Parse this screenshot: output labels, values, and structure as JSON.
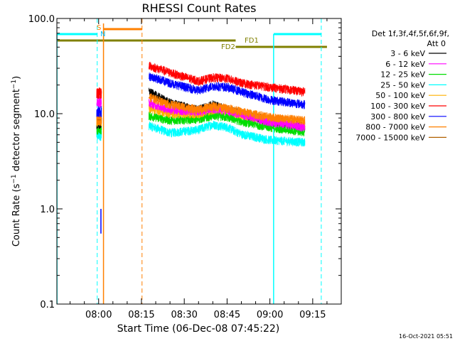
{
  "chart_data": {
    "type": "line",
    "title": "RHESSI Count Rates",
    "xlabel": "Start Time (06-Dec-08 07:45:22)",
    "ylabel": "Count Rate (s⁻¹ detector segment⁻¹)",
    "ylabel_main": "Count Rate (s",
    "ylabel_sup1": "−1",
    "ylabel_mid": " detector segment",
    "ylabel_sup2": "−1",
    "ylabel_end": ")",
    "yscale": "log",
    "ylim": [
      0.1,
      100
    ],
    "xlim": [
      "07:45:22",
      "09:25:00"
    ],
    "x_ticks": [
      {
        "label": "08:00",
        "t": 480
      },
      {
        "label": "08:15",
        "t": 495
      },
      {
        "label": "08:30",
        "t": 510
      },
      {
        "label": "08:45",
        "t": 525
      },
      {
        "label": "09:00",
        "t": 540
      },
      {
        "label": "09:15",
        "t": 555
      }
    ],
    "y_ticks": [
      {
        "label": "100.0",
        "v": 100
      },
      {
        "label": "10.0",
        "v": 10
      },
      {
        "label": "1.0",
        "v": 1
      },
      {
        "label": "0.1",
        "v": 0.1
      }
    ],
    "timestamp": "16-Oct-2021 05:51",
    "legend": {
      "header1": "Det 1f,3f,4f,5f,6f,9f,",
      "header2": "Att 0",
      "entries": [
        {
          "label": "3 - 6 keV",
          "color": "#000000"
        },
        {
          "label": "6 - 12 keV",
          "color": "#ff00ff"
        },
        {
          "label": "12 - 25 keV",
          "color": "#00dd00"
        },
        {
          "label": "25 - 50 keV",
          "color": "#00ffff"
        },
        {
          "label": "50 - 100 keV",
          "color": "#ffb000"
        },
        {
          "label": "100 - 300 keV",
          "color": "#ff0000"
        },
        {
          "label": "300 - 800 keV",
          "color": "#0000ff"
        },
        {
          "label": "800 - 7000 keV",
          "color": "#ff8000"
        },
        {
          "label": "7000 - 15000 keV",
          "color": "#b06000"
        }
      ]
    },
    "segments": [
      {
        "t0": 479.3,
        "t1": 481.0
      },
      {
        "t0": 497.6,
        "t1": 531.2
      },
      {
        "t0": 531.2,
        "t1": 552.3
      }
    ],
    "series": [
      {
        "name": "3 - 6 keV",
        "color": "#000000",
        "pre": 8.0,
        "main": [
          [
            497.6,
            17
          ],
          [
            505,
            13
          ],
          [
            515,
            11
          ],
          [
            520,
            12.5
          ],
          [
            525,
            11
          ],
          [
            530,
            10
          ],
          [
            540,
            8.5
          ],
          [
            552.3,
            7.5
          ]
        ]
      },
      {
        "name": "6 - 12 keV",
        "color": "#ff00ff",
        "pre": 13.5,
        "main": [
          [
            497.6,
            13
          ],
          [
            505,
            11
          ],
          [
            515,
            10.5
          ],
          [
            520,
            11.2
          ],
          [
            525,
            10.8
          ],
          [
            530,
            9.8
          ],
          [
            540,
            8.2
          ],
          [
            552.3,
            7.2
          ]
        ]
      },
      {
        "name": "12 - 25 keV",
        "color": "#00dd00",
        "pre": 7.0,
        "main": [
          [
            497.6,
            9.5
          ],
          [
            505,
            8.5
          ],
          [
            515,
            8.8
          ],
          [
            520,
            9.5
          ],
          [
            525,
            9.2
          ],
          [
            530,
            8.3
          ],
          [
            540,
            7.2
          ],
          [
            552.3,
            6.4
          ]
        ]
      },
      {
        "name": "25 - 50 keV",
        "color": "#00ffff",
        "pre": 6.0,
        "main": [
          [
            497.6,
            7.5
          ],
          [
            505,
            6.3
          ],
          [
            515,
            6.8
          ],
          [
            520,
            7.7
          ],
          [
            525,
            7.2
          ],
          [
            530,
            6.1
          ],
          [
            540,
            5.3
          ],
          [
            552.3,
            5.0
          ]
        ]
      },
      {
        "name": "50 - 100 keV",
        "color": "#ffb000",
        "pre": 8.5,
        "main": [
          [
            497.6,
            11.5
          ],
          [
            505,
            10
          ],
          [
            515,
            10
          ],
          [
            520,
            11
          ],
          [
            525,
            10.8
          ],
          [
            530,
            9.8
          ],
          [
            540,
            8.5
          ],
          [
            552.3,
            7.6
          ]
        ]
      },
      {
        "name": "100 - 300 keV",
        "color": "#ff0000",
        "pre": 16.5,
        "main": [
          [
            497.6,
            32
          ],
          [
            505,
            27
          ],
          [
            515,
            22
          ],
          [
            520,
            24
          ],
          [
            525,
            23.5
          ],
          [
            530,
            21
          ],
          [
            540,
            19
          ],
          [
            552.3,
            17
          ]
        ]
      },
      {
        "name": "300 - 800 keV",
        "color": "#0000ff",
        "pre": 10.5,
        "main": [
          [
            497.6,
            25
          ],
          [
            505,
            21
          ],
          [
            515,
            17.5
          ],
          [
            520,
            19.5
          ],
          [
            525,
            19
          ],
          [
            530,
            17
          ],
          [
            540,
            14
          ],
          [
            552.3,
            12.5
          ]
        ]
      },
      {
        "name": "800 - 7000 keV",
        "color": "#ff8000",
        "pre": 8.8,
        "main": [
          [
            497.6,
            15
          ],
          [
            505,
            12.5
          ],
          [
            515,
            11
          ],
          [
            520,
            12
          ],
          [
            525,
            11.5
          ],
          [
            530,
            10.5
          ],
          [
            540,
            9.2
          ],
          [
            552.3,
            8.5
          ]
        ]
      },
      {
        "name": "7000 - 15000 keV",
        "color": "#b06000",
        "pre": 8.6,
        "main": []
      }
    ],
    "annotations": {
      "saa_label": "S",
      "night_label": "N",
      "fd1_label": "FD1",
      "fd2_label": "FD2",
      "cyan_bars": [
        [
          465.4,
          479.5
        ],
        [
          541.3,
          558.0
        ]
      ],
      "orange_bar": [
        481.7,
        495.2
      ],
      "fd1_range": [
        465.4,
        528.0
      ],
      "fd2_range": [
        528.0,
        560.0
      ],
      "cyan_dashed_t": [
        479.5,
        558.0
      ],
      "cyan_solid_t": [
        465.4,
        541.3
      ],
      "orange_dashed_t": [
        495.2
      ],
      "orange_solid_t": [
        481.7
      ],
      "blue_spike_t": 480.8
    }
  }
}
